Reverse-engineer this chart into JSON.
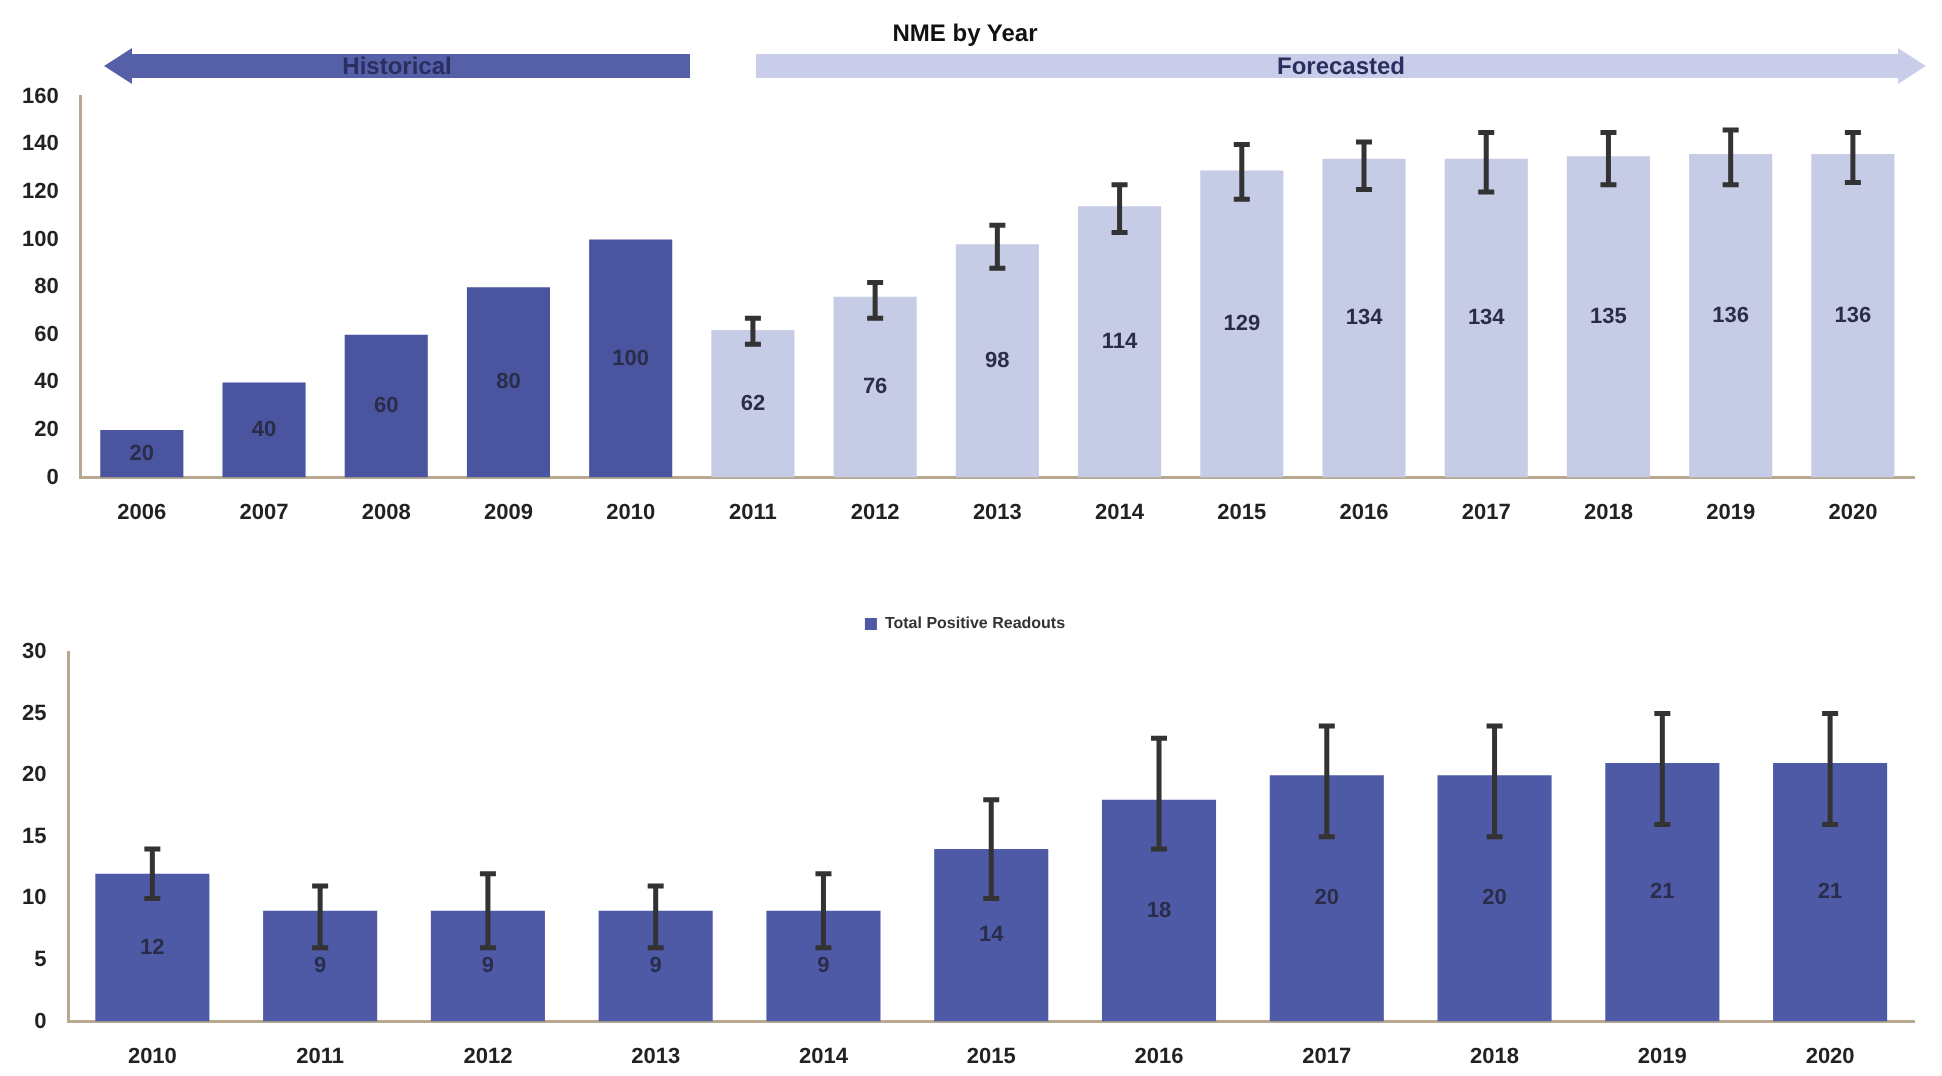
{
  "chart_data": [
    {
      "type": "bar",
      "title": "NME by Year",
      "annotations": [
        "Historical",
        "Forecasted"
      ],
      "categories": [
        "2006",
        "2007",
        "2008",
        "2009",
        "2010",
        "2011",
        "2012",
        "2013",
        "2014",
        "2015",
        "2016",
        "2017",
        "2018",
        "2019",
        "2020"
      ],
      "values": [
        20,
        40,
        60,
        80,
        100,
        62,
        76,
        98,
        114,
        129,
        134,
        134,
        135,
        136,
        136
      ],
      "colors": [
        "#4b559f",
        "#4b559f",
        "#4b559f",
        "#4b559f",
        "#4b559f",
        "#c6cbe6",
        "#c6cbe6",
        "#c6cbe6",
        "#c6cbe6",
        "#c6cbe6",
        "#c6cbe6",
        "#c6cbe6",
        "#c6cbe6",
        "#c6cbe6",
        "#c6cbe6"
      ],
      "errors": [
        null,
        null,
        null,
        null,
        null,
        [
          56,
          67
        ],
        [
          67,
          82
        ],
        [
          88,
          106
        ],
        [
          103,
          123
        ],
        [
          117,
          140
        ],
        [
          121,
          141
        ],
        [
          120,
          145
        ],
        [
          123,
          145
        ],
        [
          123,
          146
        ],
        [
          124,
          145
        ]
      ],
      "ylim": [
        0,
        160
      ],
      "yticks": [
        0,
        20,
        40,
        60,
        80,
        100,
        120,
        140,
        160
      ],
      "data_labels": true,
      "grid": false,
      "legend": false
    },
    {
      "type": "bar",
      "categories": [
        "2010",
        "2011",
        "2012",
        "2013",
        "2014",
        "2015",
        "2016",
        "2017",
        "2018",
        "2019",
        "2020"
      ],
      "series": [
        {
          "name": "Total Positive Readouts",
          "color": "#4f5aa6",
          "values": [
            12,
            9,
            9,
            9,
            9,
            14,
            18,
            20,
            20,
            21,
            21
          ],
          "errors": [
            [
              10,
              14
            ],
            [
              6,
              11
            ],
            [
              6,
              12
            ],
            [
              6,
              11
            ],
            [
              6,
              12
            ],
            [
              10,
              18
            ],
            [
              14,
              23
            ],
            [
              15,
              24
            ],
            [
              15,
              24
            ],
            [
              16,
              25
            ],
            [
              16,
              25
            ]
          ]
        }
      ],
      "ylim": [
        0,
        30
      ],
      "yticks": [
        0,
        5,
        10,
        15,
        20,
        25,
        30
      ],
      "data_labels": true,
      "grid": false,
      "legend": "top"
    }
  ]
}
